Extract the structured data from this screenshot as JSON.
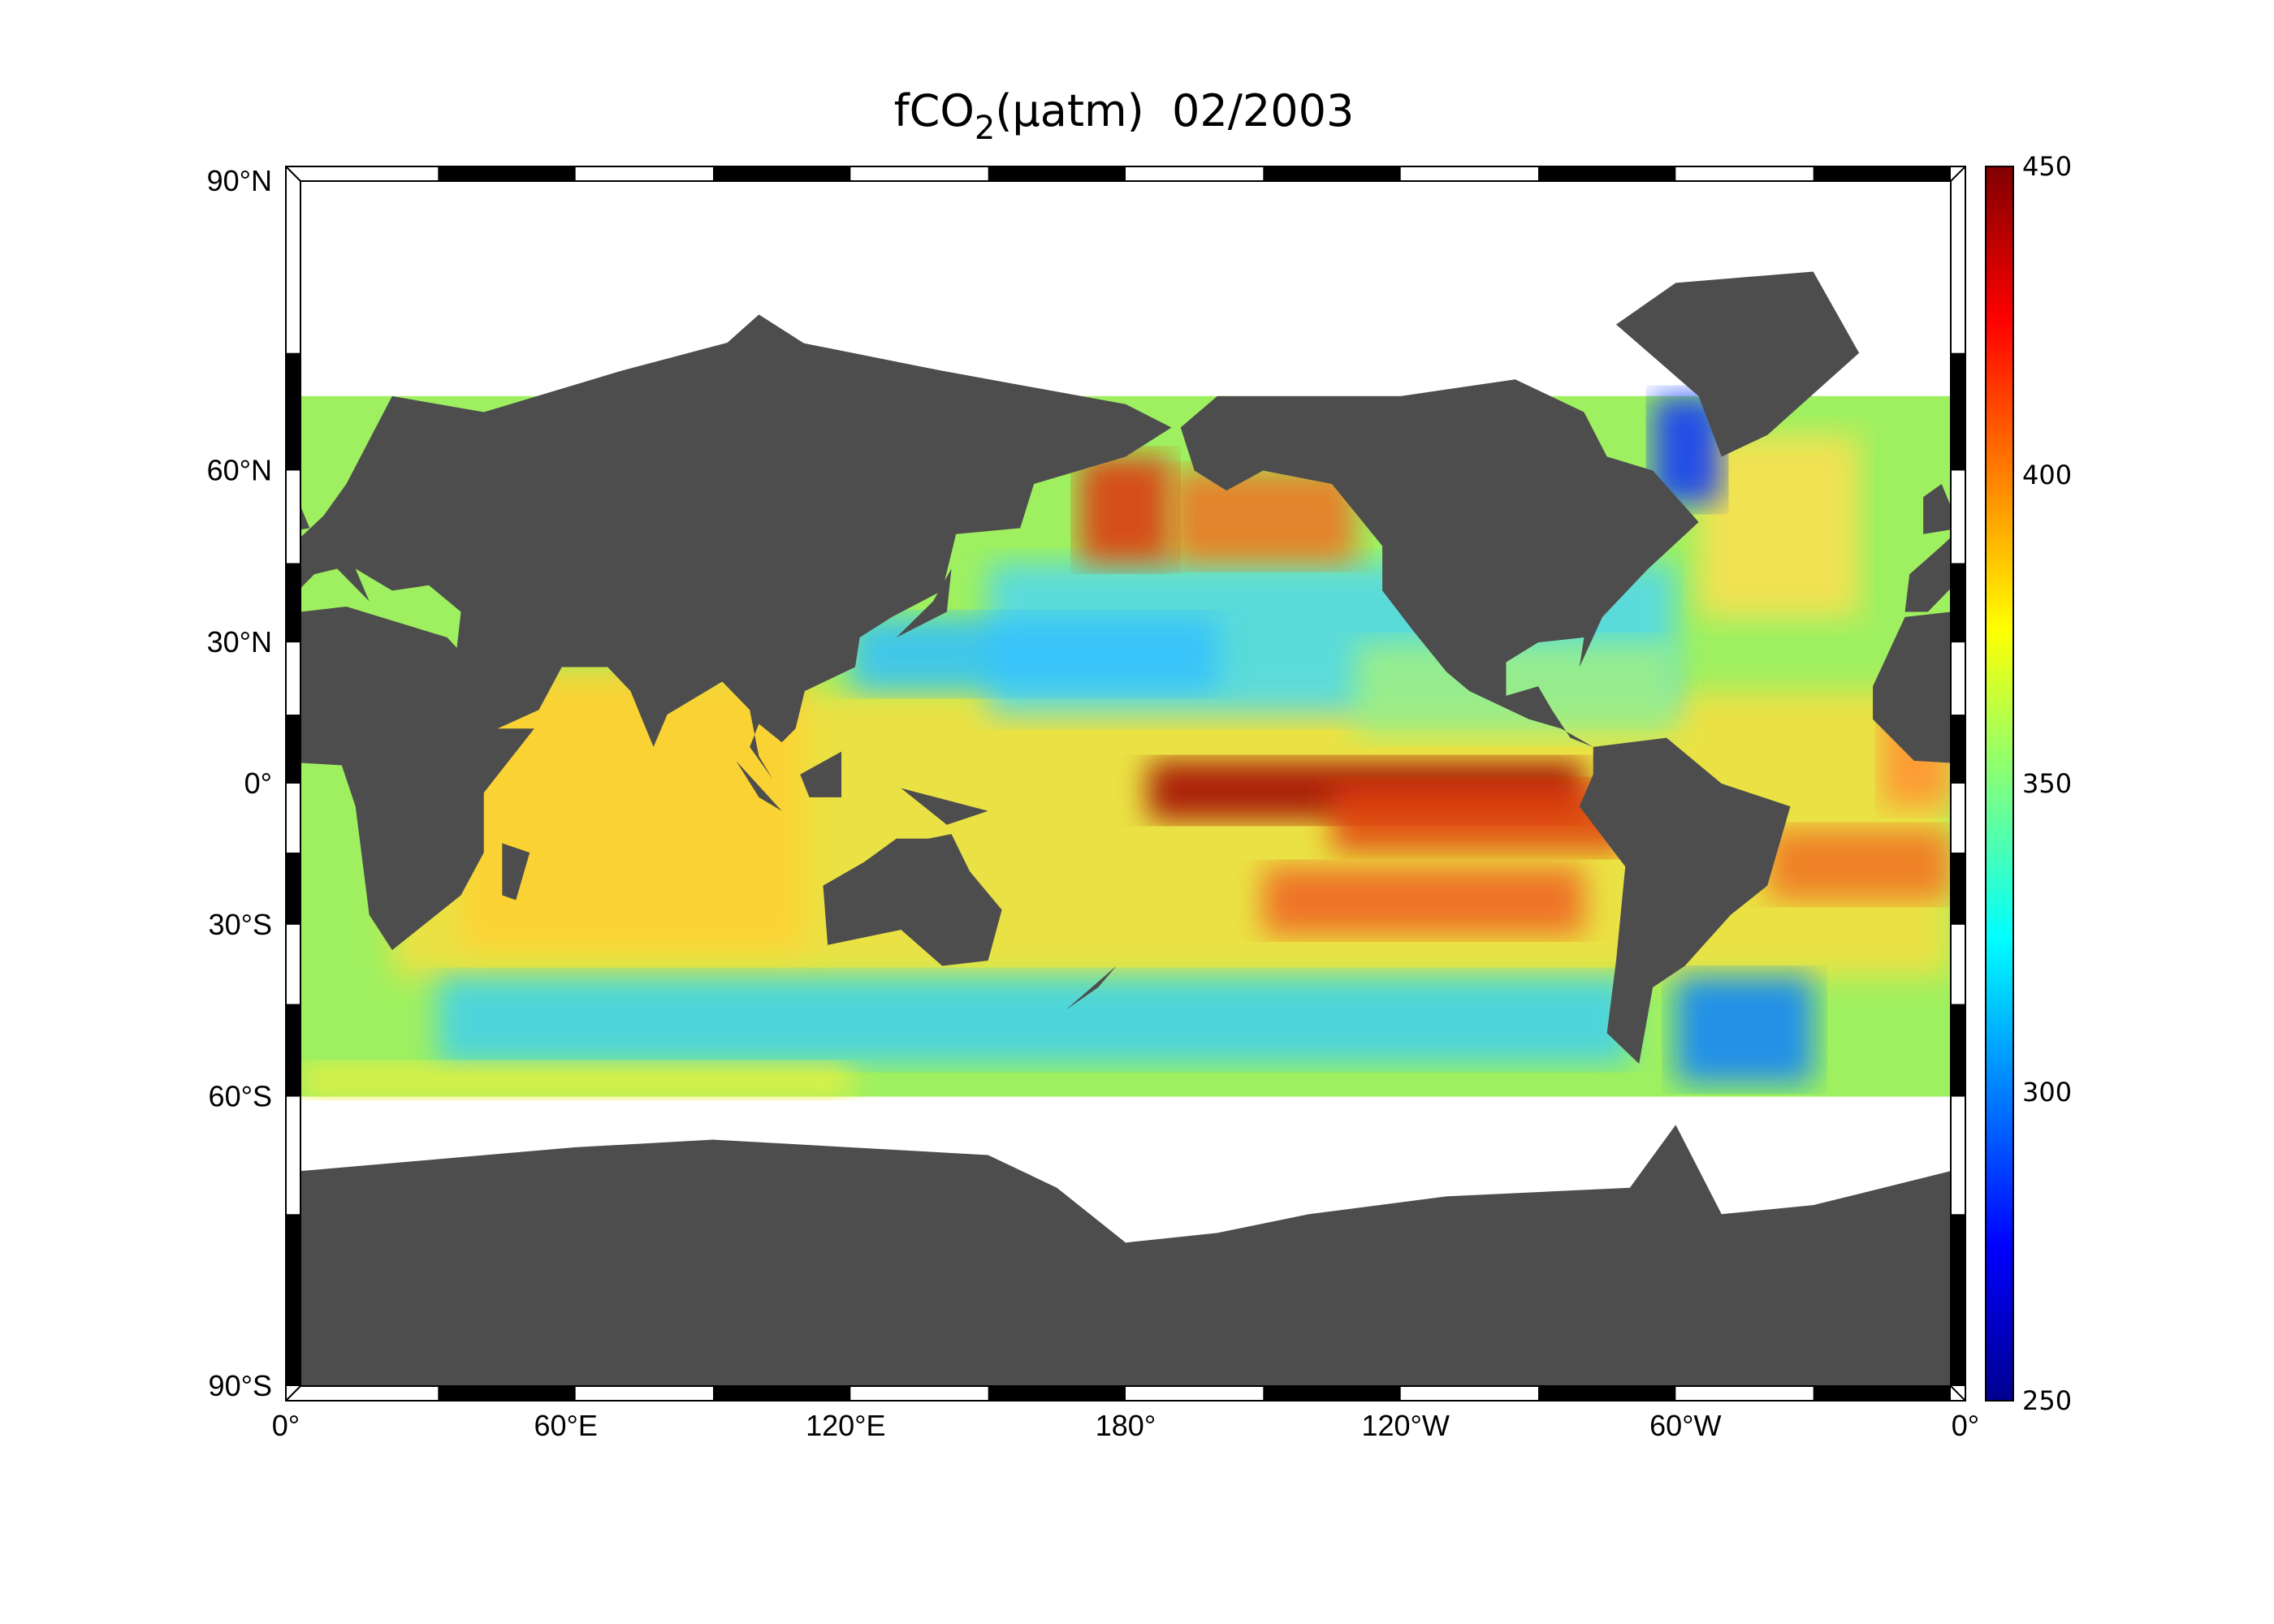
{
  "title": {
    "main": "fCO",
    "subscript": "2",
    "rest": "(μatm)  02/2003"
  },
  "map": {
    "lat_ticks": [
      {
        "value": 90,
        "label": "90°N"
      },
      {
        "value": 60,
        "label": "60°N"
      },
      {
        "value": 30,
        "label": "30°N"
      },
      {
        "value": 0,
        "label": "0°"
      },
      {
        "value": -30,
        "label": "30°S"
      },
      {
        "value": -60,
        "label": "60°S"
      },
      {
        "value": -90,
        "label": "90°S"
      }
    ],
    "lon_ticks": [
      {
        "value": 0,
        "label": "0°"
      },
      {
        "value": 60,
        "label": "60°E"
      },
      {
        "value": 120,
        "label": "120°E"
      },
      {
        "value": 180,
        "label": "180°"
      },
      {
        "value": 240,
        "label": "120°W"
      },
      {
        "value": 300,
        "label": "60°W"
      },
      {
        "value": 360,
        "label": "0°"
      }
    ]
  },
  "colorbar": {
    "range": [
      250,
      450
    ],
    "ticks": [
      250,
      300,
      350,
      400,
      450
    ]
  }
}
